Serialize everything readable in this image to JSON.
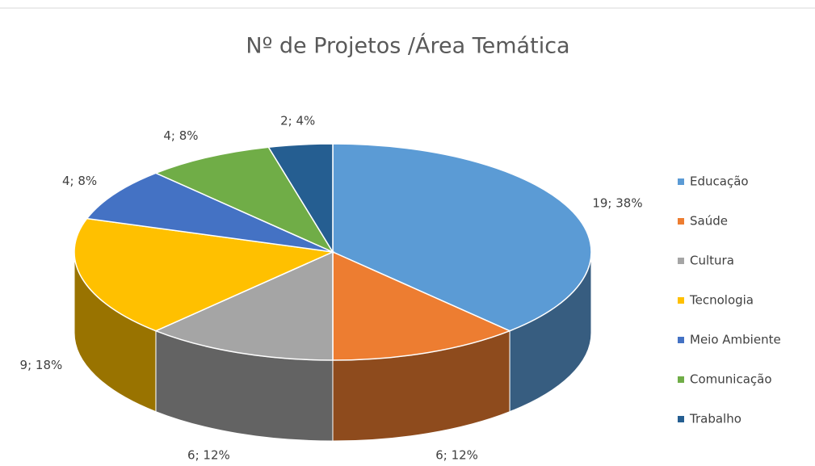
{
  "chart_data": {
    "type": "pie",
    "title": "Nº de Projetos /Área Temática",
    "categories": [
      "Educação",
      "Saúde",
      "Cultura",
      "Tecnologia",
      "Meio Ambiente",
      "Comunicação",
      "Trabalho"
    ],
    "values": [
      19,
      6,
      6,
      9,
      4,
      4,
      2
    ],
    "value_labels": [
      "19; 38%",
      "6; 12%",
      "6; 12%",
      "9; 18%",
      "4; 8%",
      "4; 8%",
      "2; 4%"
    ],
    "colors": [
      "#5b9bd5",
      "#ed7d31",
      "#a5a5a5",
      "#ffc000",
      "#4472c4",
      "#70ad47",
      "#255e91"
    ],
    "legend": "right"
  }
}
